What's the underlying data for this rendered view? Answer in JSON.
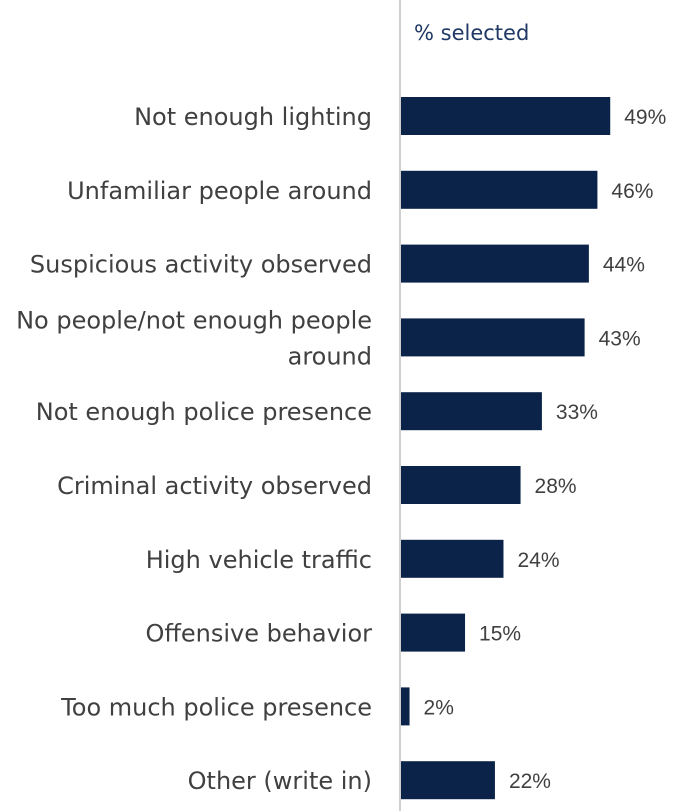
{
  "chart_data": {
    "type": "bar",
    "orientation": "horizontal",
    "series_title": "% selected",
    "categories": [
      "Not enough lighting",
      "Unfamiliar people around",
      "Suspicious activity observed",
      "No people/not enough people around",
      "Not enough police presence",
      "Criminal activity observed",
      "High vehicle traffic",
      "Offensive behavior",
      "Too much police presence",
      "Other (write in)"
    ],
    "category_label_lines": [
      [
        "Not enough lighting"
      ],
      [
        "Unfamiliar people around"
      ],
      [
        "Suspicious activity observed"
      ],
      [
        "No people/not enough people",
        "around"
      ],
      [
        "Not enough police presence"
      ],
      [
        "Criminal activity observed"
      ],
      [
        "High vehicle traffic"
      ],
      [
        "Offensive behavior"
      ],
      [
        "Too much police presence"
      ],
      [
        "Other (write in)"
      ]
    ],
    "values": [
      49,
      46,
      44,
      43,
      33,
      28,
      24,
      15,
      2,
      22
    ],
    "value_labels": [
      "49%",
      "46%",
      "44%",
      "43%",
      "33%",
      "28%",
      "24%",
      "15%",
      "2%",
      "22%"
    ],
    "xlim": [
      0,
      100
    ],
    "bar_color": "#0c2349",
    "axis_color": "#bfbfbf",
    "title_color": "#1f3864",
    "grid": false,
    "legend": "none"
  }
}
